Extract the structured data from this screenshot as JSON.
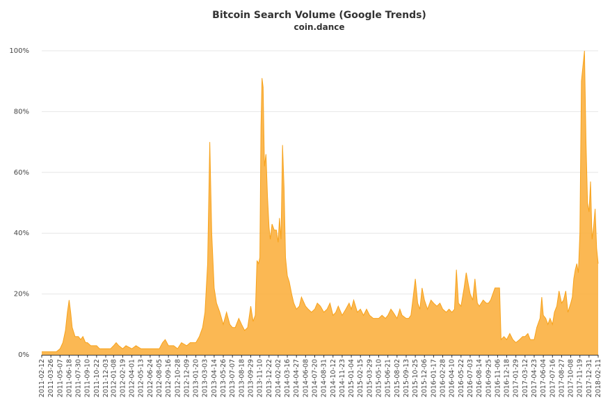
{
  "chart_data": {
    "type": "area",
    "title": "Bitcoin Search Volume (Google Trends)",
    "subtitle": "coin.dance",
    "xlabel": "",
    "ylabel": "",
    "ylim": [
      0,
      100
    ],
    "y_ticks": [
      "0%",
      "20%",
      "40%",
      "60%",
      "80%",
      "100%"
    ],
    "x_tick_labels": [
      "2011-02-12",
      "2011-03-26",
      "2011-05-07",
      "2011-06-18",
      "2011-07-30",
      "2011-09-10",
      "2011-10-22",
      "2011-12-03",
      "2012-01-08",
      "2012-02-19",
      "2012-04-01",
      "2012-05-13",
      "2012-06-24",
      "2012-08-05",
      "2012-09-16",
      "2012-10-28",
      "2012-12-09",
      "2013-01-20",
      "2013-03-03",
      "2013-04-14",
      "2013-05-26",
      "2013-07-07",
      "2013-08-18",
      "2013-09-29",
      "2013-11-10",
      "2013-12-22",
      "2014-02-02",
      "2014-03-16",
      "2014-04-27",
      "2014-06-08",
      "2014-07-20",
      "2014-08-31",
      "2014-10-12",
      "2014-11-23",
      "2015-01-04",
      "2015-02-15",
      "2015-03-29",
      "2015-05-10",
      "2015-06-21",
      "2015-08-02",
      "2015-09-13",
      "2015-10-25",
      "2015-12-06",
      "2016-01-17",
      "2016-02-28",
      "2016-04-10",
      "2016-05-22",
      "2016-07-03",
      "2016-08-14",
      "2016-09-25",
      "2016-11-06",
      "2016-12-18",
      "2017-01-29",
      "2017-03-12",
      "2017-04-23",
      "2017-06-04",
      "2017-07-16",
      "2017-08-27",
      "2017-10-08",
      "2017-11-19",
      "2017-12-31",
      "2018-02-11"
    ],
    "grid": true,
    "legend": "none",
    "color": "#fbb040",
    "series": [
      {
        "name": "",
        "points": [
          [
            "2011-02-12",
            1
          ],
          [
            "2011-03-26",
            1
          ],
          [
            "2011-04-20",
            1
          ],
          [
            "2011-05-07",
            2
          ],
          [
            "2011-05-20",
            4
          ],
          [
            "2011-06-01",
            8
          ],
          [
            "2011-06-10",
            14
          ],
          [
            "2011-06-18",
            18
          ],
          [
            "2011-06-25",
            14
          ],
          [
            "2011-07-02",
            9
          ],
          [
            "2011-07-15",
            6
          ],
          [
            "2011-07-30",
            6
          ],
          [
            "2011-08-10",
            5
          ],
          [
            "2011-08-20",
            6
          ],
          [
            "2011-09-01",
            4
          ],
          [
            "2011-09-10",
            4
          ],
          [
            "2011-09-25",
            3
          ],
          [
            "2011-10-22",
            3
          ],
          [
            "2011-11-05",
            2
          ],
          [
            "2011-12-03",
            2
          ],
          [
            "2011-12-25",
            2
          ],
          [
            "2012-01-08",
            3
          ],
          [
            "2012-01-20",
            4
          ],
          [
            "2012-02-01",
            3
          ],
          [
            "2012-02-19",
            2
          ],
          [
            "2012-03-05",
            3
          ],
          [
            "2012-04-01",
            2
          ],
          [
            "2012-04-20",
            3
          ],
          [
            "2012-05-13",
            2
          ],
          [
            "2012-06-24",
            2
          ],
          [
            "2012-07-15",
            2
          ],
          [
            "2012-08-05",
            2
          ],
          [
            "2012-08-20",
            4
          ],
          [
            "2012-09-01",
            5
          ],
          [
            "2012-09-16",
            3
          ],
          [
            "2012-10-10",
            3
          ],
          [
            "2012-10-28",
            2
          ],
          [
            "2012-11-15",
            4
          ],
          [
            "2012-12-09",
            3
          ],
          [
            "2012-12-25",
            4
          ],
          [
            "2013-01-20",
            4
          ],
          [
            "2013-02-05",
            6
          ],
          [
            "2013-02-20",
            9
          ],
          [
            "2013-03-03",
            14
          ],
          [
            "2013-03-15",
            30
          ],
          [
            "2013-03-25",
            70
          ],
          [
            "2013-04-03",
            40
          ],
          [
            "2013-04-14",
            22
          ],
          [
            "2013-04-25",
            17
          ],
          [
            "2013-05-10",
            14
          ],
          [
            "2013-05-26",
            10
          ],
          [
            "2013-06-10",
            14
          ],
          [
            "2013-06-25",
            10
          ],
          [
            "2013-07-07",
            9
          ],
          [
            "2013-07-20",
            9
          ],
          [
            "2013-08-05",
            12
          ],
          [
            "2013-08-18",
            10
          ],
          [
            "2013-09-01",
            8
          ],
          [
            "2013-09-15",
            9
          ],
          [
            "2013-09-29",
            16
          ],
          [
            "2013-10-10",
            11
          ],
          [
            "2013-10-20",
            13
          ],
          [
            "2013-10-28",
            31
          ],
          [
            "2013-11-04",
            30
          ],
          [
            "2013-11-10",
            32
          ],
          [
            "2013-11-15",
            75
          ],
          [
            "2013-11-20",
            91
          ],
          [
            "2013-11-25",
            88
          ],
          [
            "2013-12-01",
            62
          ],
          [
            "2013-12-08",
            66
          ],
          [
            "2013-12-15",
            52
          ],
          [
            "2013-12-22",
            42
          ],
          [
            "2013-12-28",
            38
          ],
          [
            "2014-01-05",
            43
          ],
          [
            "2014-01-15",
            41
          ],
          [
            "2014-01-25",
            41
          ],
          [
            "2014-02-02",
            37
          ],
          [
            "2014-02-08",
            45
          ],
          [
            "2014-02-15",
            38
          ],
          [
            "2014-02-22",
            69
          ],
          [
            "2014-03-01",
            55
          ],
          [
            "2014-03-08",
            32
          ],
          [
            "2014-03-16",
            26
          ],
          [
            "2014-03-25",
            24
          ],
          [
            "2014-04-05",
            20
          ],
          [
            "2014-04-15",
            17
          ],
          [
            "2014-04-27",
            15
          ],
          [
            "2014-05-10",
            16
          ],
          [
            "2014-05-20",
            19
          ],
          [
            "2014-06-08",
            16
          ],
          [
            "2014-06-20",
            15
          ],
          [
            "2014-07-05",
            14
          ],
          [
            "2014-07-20",
            15
          ],
          [
            "2014-08-01",
            17
          ],
          [
            "2014-08-15",
            16
          ],
          [
            "2014-08-31",
            14
          ],
          [
            "2014-09-15",
            15
          ],
          [
            "2014-09-28",
            17
          ],
          [
            "2014-10-12",
            13
          ],
          [
            "2014-10-25",
            14
          ],
          [
            "2014-11-05",
            16
          ],
          [
            "2014-11-23",
            13
          ],
          [
            "2014-12-10",
            15
          ],
          [
            "2014-12-25",
            17
          ],
          [
            "2015-01-04",
            15
          ],
          [
            "2015-01-15",
            18
          ],
          [
            "2015-02-01",
            14
          ],
          [
            "2015-02-15",
            15
          ],
          [
            "2015-03-01",
            13
          ],
          [
            "2015-03-15",
            15
          ],
          [
            "2015-03-29",
            13
          ],
          [
            "2015-04-15",
            12
          ],
          [
            "2015-05-10",
            12
          ],
          [
            "2015-05-25",
            13
          ],
          [
            "2015-06-10",
            12
          ],
          [
            "2015-06-21",
            13
          ],
          [
            "2015-07-05",
            15
          ],
          [
            "2015-07-15",
            14
          ],
          [
            "2015-08-02",
            12
          ],
          [
            "2015-08-15",
            15
          ],
          [
            "2015-08-25",
            13
          ],
          [
            "2015-09-13",
            12
          ],
          [
            "2015-09-25",
            12
          ],
          [
            "2015-10-05",
            13
          ],
          [
            "2015-10-15",
            19
          ],
          [
            "2015-10-25",
            25
          ],
          [
            "2015-11-05",
            17
          ],
          [
            "2015-11-15",
            15
          ],
          [
            "2015-11-25",
            22
          ],
          [
            "2015-12-06",
            18
          ],
          [
            "2015-12-20",
            15
          ],
          [
            "2016-01-05",
            18
          ],
          [
            "2016-01-17",
            17
          ],
          [
            "2016-02-01",
            16
          ],
          [
            "2016-02-15",
            17
          ],
          [
            "2016-02-28",
            15
          ],
          [
            "2016-03-15",
            14
          ],
          [
            "2016-03-28",
            15
          ],
          [
            "2016-04-10",
            14
          ],
          [
            "2016-04-22",
            15
          ],
          [
            "2016-05-01",
            28
          ],
          [
            "2016-05-10",
            17
          ],
          [
            "2016-05-22",
            16
          ],
          [
            "2016-06-05",
            22
          ],
          [
            "2016-06-15",
            27
          ],
          [
            "2016-06-25",
            23
          ],
          [
            "2016-07-03",
            20
          ],
          [
            "2016-07-15",
            18
          ],
          [
            "2016-07-25",
            25
          ],
          [
            "2016-08-05",
            17
          ],
          [
            "2016-08-14",
            16
          ],
          [
            "2016-09-01",
            18
          ],
          [
            "2016-09-15",
            17
          ],
          [
            "2016-09-25",
            17
          ],
          [
            "2016-10-05",
            18
          ],
          [
            "2016-10-15",
            20
          ],
          [
            "2016-10-25",
            22
          ],
          [
            "2016-11-06",
            22
          ],
          [
            "2016-11-15",
            22
          ],
          [
            "2016-11-22",
            5
          ],
          [
            "2016-12-05",
            6
          ],
          [
            "2016-12-18",
            5
          ],
          [
            "2017-01-01",
            7
          ],
          [
            "2017-01-15",
            5
          ],
          [
            "2017-01-29",
            4
          ],
          [
            "2017-02-15",
            5
          ],
          [
            "2017-03-01",
            6
          ],
          [
            "2017-03-12",
            6
          ],
          [
            "2017-03-25",
            7
          ],
          [
            "2017-04-05",
            5
          ],
          [
            "2017-04-23",
            5
          ],
          [
            "2017-05-05",
            9
          ],
          [
            "2017-05-20",
            12
          ],
          [
            "2017-05-28",
            19
          ],
          [
            "2017-06-04",
            13
          ],
          [
            "2017-06-15",
            12
          ],
          [
            "2017-06-25",
            10
          ],
          [
            "2017-07-05",
            12
          ],
          [
            "2017-07-16",
            10
          ],
          [
            "2017-07-25",
            14
          ],
          [
            "2017-08-05",
            16
          ],
          [
            "2017-08-15",
            21
          ],
          [
            "2017-08-27",
            17
          ],
          [
            "2017-09-05",
            18
          ],
          [
            "2017-09-15",
            21
          ],
          [
            "2017-09-25",
            14
          ],
          [
            "2017-10-08",
            17
          ],
          [
            "2017-10-15",
            19
          ],
          [
            "2017-10-22",
            25
          ],
          [
            "2017-10-29",
            28
          ],
          [
            "2017-11-05",
            30
          ],
          [
            "2017-11-12",
            27
          ],
          [
            "2017-11-19",
            40
          ],
          [
            "2017-11-26",
            90
          ],
          [
            "2017-12-03",
            95
          ],
          [
            "2017-12-10",
            100
          ],
          [
            "2017-12-17",
            70
          ],
          [
            "2017-12-24",
            50
          ],
          [
            "2017-12-31",
            47
          ],
          [
            "2018-01-07",
            57
          ],
          [
            "2018-01-14",
            38
          ],
          [
            "2018-01-21",
            42
          ],
          [
            "2018-01-28",
            48
          ],
          [
            "2018-02-04",
            35
          ],
          [
            "2018-02-11",
            30
          ]
        ]
      }
    ]
  }
}
